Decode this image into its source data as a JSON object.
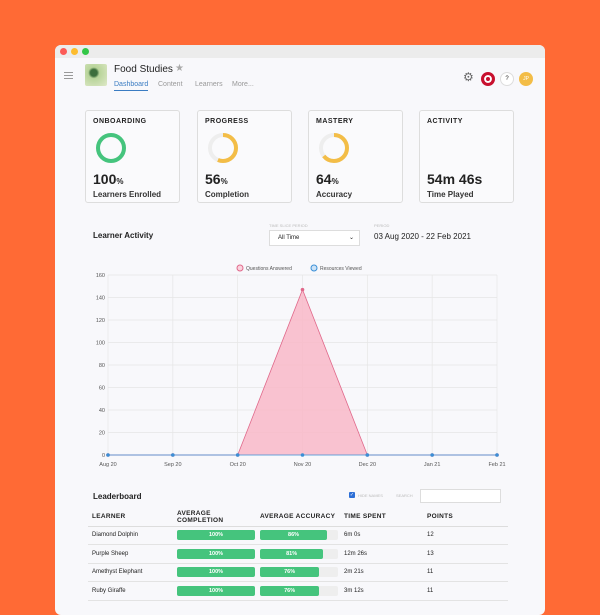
{
  "header": {
    "title": "Food Studies",
    "tabs": [
      "Dashboard",
      "Content",
      "Learners",
      "More..."
    ],
    "avatar": "JP",
    "help": "?"
  },
  "cards": [
    {
      "label": "ONBOARDING",
      "value": "100",
      "unit": "%",
      "sub": "Learners Enrolled",
      "percent": 100,
      "color": "#45c47d"
    },
    {
      "label": "PROGRESS",
      "value": "56",
      "unit": "%",
      "sub": "Completion",
      "percent": 56,
      "color": "#f3bd47"
    },
    {
      "label": "MASTERY",
      "value": "64",
      "unit": "%",
      "sub": "Accuracy",
      "percent": 64,
      "color": "#f3bd47"
    },
    {
      "label": "ACTIVITY",
      "value": "54m 46s",
      "unit": "",
      "sub": "Time Played"
    }
  ],
  "activity": {
    "title": "Learner Activity",
    "slice_label": "TIME SLICE PERIOD",
    "slice_value": "All Time",
    "period_label": "PERIOD",
    "period_value": "03 Aug 2020 - 22 Feb 2021"
  },
  "chart_data": {
    "type": "area",
    "categories": [
      "Aug 20",
      "Sep 20",
      "Oct 20",
      "Nov 20",
      "Dec 20",
      "Jan 21",
      "Feb 21"
    ],
    "series": [
      {
        "name": "Questions Answered",
        "values": [
          0,
          0,
          0,
          147,
          0,
          0,
          0
        ],
        "color": "#e0688a"
      },
      {
        "name": "Resources Viewed",
        "values": [
          0,
          0,
          0,
          0,
          0,
          0,
          0
        ],
        "color": "#3a8fd6"
      }
    ],
    "ylim": [
      0,
      160
    ],
    "yticks": [
      0,
      20,
      40,
      60,
      80,
      100,
      120,
      140,
      160
    ],
    "grid": true,
    "legend": "top"
  },
  "leaderboard": {
    "title": "Leaderboard",
    "hide_names": "HIDE NAMES",
    "hide_checked": true,
    "search_label": "SEARCH",
    "columns": [
      "LEARNER",
      "AVERAGE COMPLETION",
      "AVERAGE ACCURACY",
      "TIME SPENT",
      "POINTS"
    ],
    "rows": [
      {
        "name": "Diamond Dolphin",
        "completion": 100,
        "completion_text": "100%",
        "accuracy": 86,
        "accuracy_text": "86%",
        "time": "6m 0s",
        "points": "12"
      },
      {
        "name": "Purple Sheep",
        "completion": 100,
        "completion_text": "100%",
        "accuracy": 81,
        "accuracy_text": "81%",
        "time": "12m 26s",
        "points": "13"
      },
      {
        "name": "Amethyst Elephant",
        "completion": 100,
        "completion_text": "100%",
        "accuracy": 76,
        "accuracy_text": "76%",
        "time": "2m 21s",
        "points": "11"
      },
      {
        "name": "Ruby Giraffe",
        "completion": 100,
        "completion_text": "100%",
        "accuracy": 76,
        "accuracy_text": "76%",
        "time": "3m 12s",
        "points": "11"
      }
    ]
  }
}
